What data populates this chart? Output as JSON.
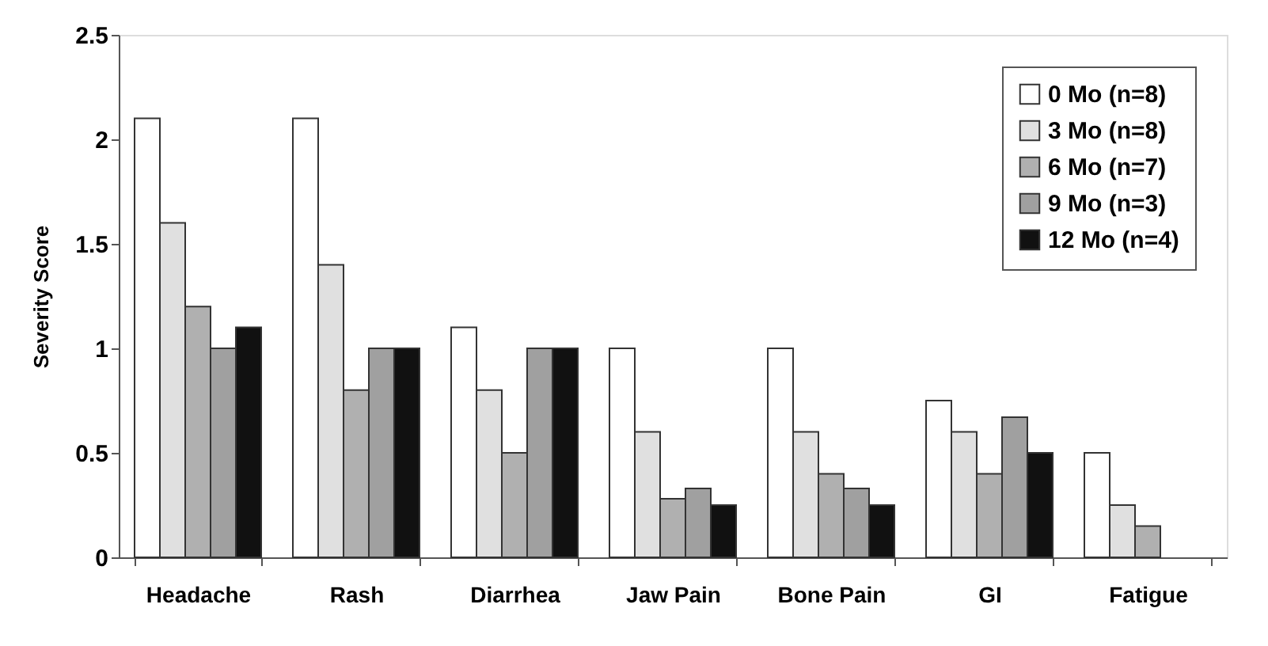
{
  "chart_data": {
    "type": "bar",
    "ylabel": "Severity Score",
    "categories": [
      "Headache",
      "Rash",
      "Diarrhea",
      "Jaw Pain",
      "Bone Pain",
      "GI",
      "Fatigue"
    ],
    "series": [
      {
        "name": "0 Mo (n=8)",
        "color": "#ffffff",
        "values": [
          2.1,
          2.1,
          1.1,
          1.0,
          1.0,
          0.75,
          0.5
        ]
      },
      {
        "name": "3 Mo (n=8)",
        "color": "#e0e0e0",
        "values": [
          1.6,
          1.4,
          0.8,
          0.6,
          0.6,
          0.6,
          0.25
        ]
      },
      {
        "name": "6 Mo (n=7)",
        "color": "#b0b0b0",
        "values": [
          1.2,
          0.8,
          0.5,
          0.28,
          0.4,
          0.4,
          0.15
        ]
      },
      {
        "name": "9 Mo (n=3)",
        "color": "#a0a0a0",
        "values": [
          1.0,
          1.0,
          1.0,
          0.33,
          0.33,
          0.67,
          null
        ]
      },
      {
        "name": "12 Mo (n=4)",
        "color": "#111111",
        "values": [
          1.1,
          1.0,
          1.0,
          0.25,
          0.25,
          0.5,
          null
        ]
      }
    ],
    "ylim": [
      0,
      2.5
    ],
    "yticks": [
      0,
      0.5,
      1,
      1.5,
      2,
      2.5
    ],
    "grid": false,
    "legend": "top right"
  }
}
